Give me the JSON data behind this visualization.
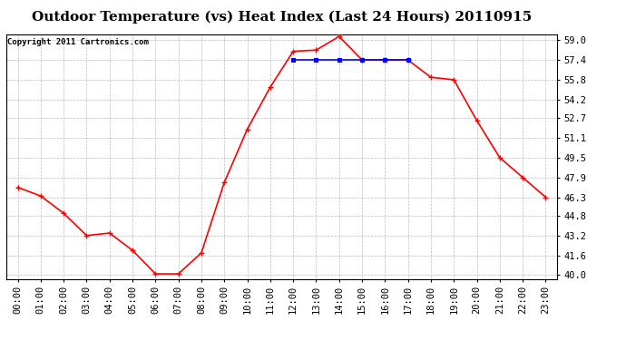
{
  "title": "Outdoor Temperature (vs) Heat Index (Last 24 Hours) 20110915",
  "copyright": "Copyright 2011 Cartronics.com",
  "x_labels": [
    "00:00",
    "01:00",
    "02:00",
    "03:00",
    "04:00",
    "05:00",
    "06:00",
    "07:00",
    "08:00",
    "09:00",
    "10:00",
    "11:00",
    "12:00",
    "13:00",
    "14:00",
    "15:00",
    "16:00",
    "17:00",
    "18:00",
    "19:00",
    "20:00",
    "21:00",
    "22:00",
    "23:00"
  ],
  "temp_values": [
    47.1,
    46.4,
    45.0,
    43.2,
    43.4,
    42.0,
    40.1,
    40.1,
    41.8,
    47.5,
    51.8,
    55.2,
    58.1,
    58.2,
    59.3,
    57.4,
    57.4,
    57.4,
    56.0,
    55.8,
    52.5,
    49.5,
    47.9,
    46.3
  ],
  "heat_values": [
    null,
    null,
    null,
    null,
    null,
    null,
    null,
    null,
    null,
    null,
    null,
    null,
    57.4,
    57.4,
    57.4,
    57.4,
    57.4,
    57.4,
    null,
    null,
    null,
    null,
    null,
    null
  ],
  "temp_color": "#FF0000",
  "heat_color": "#0000FF",
  "grid_color": "#BBBBBB",
  "background_color": "#FFFFFF",
  "plot_bg_color": "#FFFFFF",
  "y_ticks": [
    40.0,
    41.6,
    43.2,
    44.8,
    46.3,
    47.9,
    49.5,
    51.1,
    52.7,
    54.2,
    55.8,
    57.4,
    59.0
  ],
  "ylim": [
    39.7,
    59.5
  ],
  "linewidth": 1.2,
  "title_fontsize": 11,
  "tick_fontsize": 7.5,
  "copyright_fontsize": 6.5
}
